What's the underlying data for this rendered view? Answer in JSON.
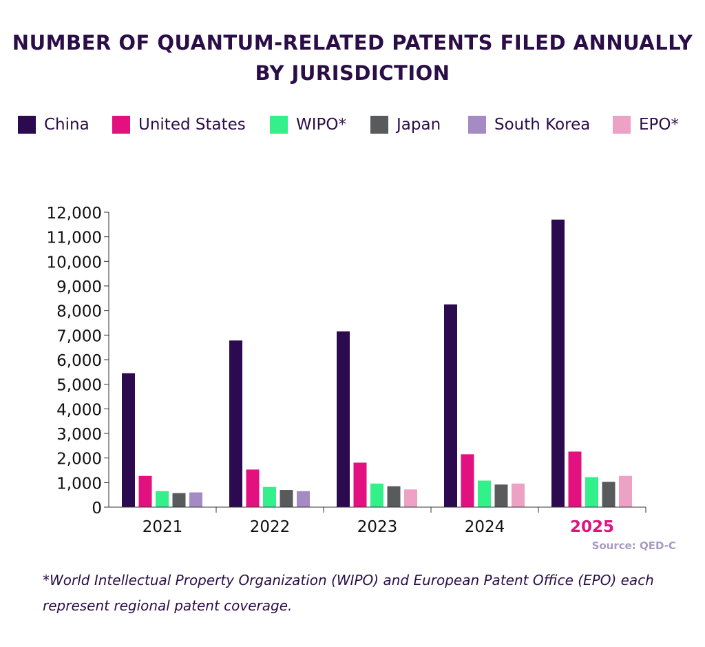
{
  "chart_data": {
    "type": "bar",
    "title_line1": "NUMBER OF QUANTUM-RELATED PATENTS FILED ANNUALLY",
    "title_line2": "BY JURISDICTION",
    "categories": [
      "2021",
      "2022",
      "2023",
      "2024",
      "2025"
    ],
    "highlight_category": "2025",
    "ylim": [
      0,
      12000
    ],
    "yticks": [
      "0",
      "1,000",
      "2,000",
      "3,000",
      "4,000",
      "5,000",
      "6,000",
      "7,000",
      "8,000",
      "9,000",
      "10,000",
      "11,000",
      "12,000"
    ],
    "ytick_values": [
      0,
      1000,
      2000,
      3000,
      4000,
      5000,
      6000,
      7000,
      8000,
      9000,
      10000,
      11000,
      12000
    ],
    "series": [
      {
        "name": "China",
        "color": "#2b0a4f",
        "values": [
          5450,
          6780,
          7150,
          8250,
          11700
        ]
      },
      {
        "name": "United States",
        "color": "#e3117f",
        "values": [
          1270,
          1530,
          1810,
          2150,
          2260
        ]
      },
      {
        "name": "WIPO*",
        "color": "#33f08a",
        "values": [
          650,
          820,
          960,
          1080,
          1220
        ]
      },
      {
        "name": "Japan",
        "color": "#595a5c",
        "values": [
          570,
          700,
          850,
          920,
          1030
        ]
      },
      {
        "name": "South Korea",
        "color": "#a48bc4",
        "values": [
          600,
          650,
          null,
          null,
          null
        ]
      },
      {
        "name": "EPO*",
        "color": "#eda1c4",
        "values": [
          null,
          null,
          720,
          960,
          1270
        ]
      }
    ],
    "source": "Source: QED-C",
    "footnote_line1": "*World Intellectual Property Organization (WIPO) and European Patent Office (EPO) each",
    "footnote_line2": "represent regional patent coverage."
  }
}
